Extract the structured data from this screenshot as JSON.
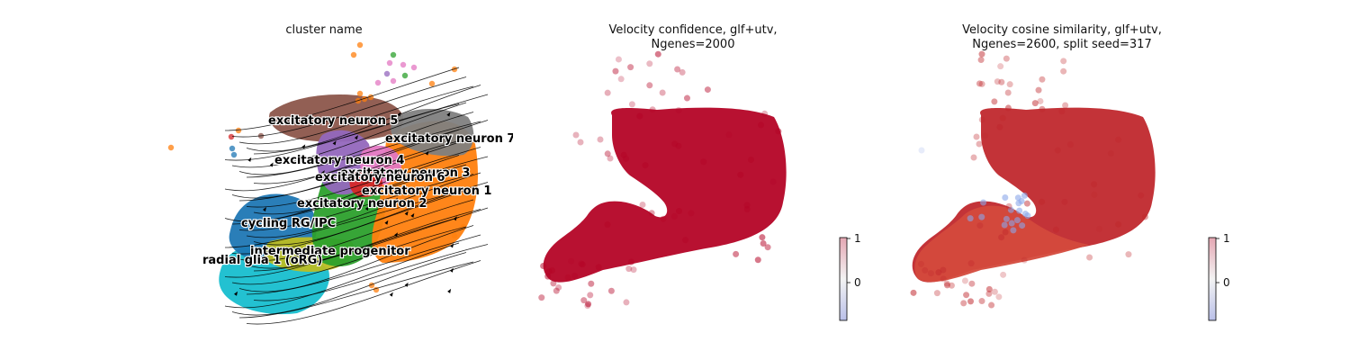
{
  "chart_data": [
    {
      "type": "scatter",
      "title": "cluster name",
      "xlabel": "",
      "ylabel": "",
      "grid": false,
      "legend": "on-data labels",
      "annotations": [
        "excitatory neuron 5",
        "excitatory neuron 7",
        "excitatory neuron 4",
        "excitatory neuron 3",
        "excitatory neuron 6",
        "excitatory neuron 1",
        "excitatory neuron 2",
        "cycling RG/IPC",
        "intermediate progenitor",
        "radial glia 1 (oRG)"
      ],
      "colors": {
        "excitatory neuron 5": "#8c564b",
        "excitatory neuron 7": "#7f7f7f",
        "excitatory neuron 4": "#9467bd",
        "excitatory neuron 3": "#e377c2",
        "excitatory neuron 6": "#d62728",
        "excitatory neuron 1": "#ff7f0e",
        "excitatory neuron 2": "#2ca02c",
        "cycling RG/IPC": "#1f77b4",
        "intermediate progenitor": "#bcbd22",
        "radial glia 1 (oRG)": "#17becf"
      },
      "overlay": "velocity streamlines"
    },
    {
      "type": "scatter",
      "title": "Velocity confidence, glf+utv,\nNgenes=2000",
      "xlabel": "",
      "ylabel": "",
      "grid": false,
      "colorbar": {
        "ticks": [
          "0",
          "1"
        ],
        "colormap": "coolwarm"
      },
      "dominant_color": "#b40426"
    },
    {
      "type": "scatter",
      "title": "Velocity cosine similarity, glf+utv,\nNgenes=2600, split seed=317",
      "xlabel": "",
      "ylabel": "",
      "grid": false,
      "colorbar": {
        "ticks": [
          "0",
          "1"
        ],
        "colormap": "coolwarm"
      },
      "dominant_color": "#c0282d",
      "secondary_color": "#d44a3c"
    }
  ]
}
